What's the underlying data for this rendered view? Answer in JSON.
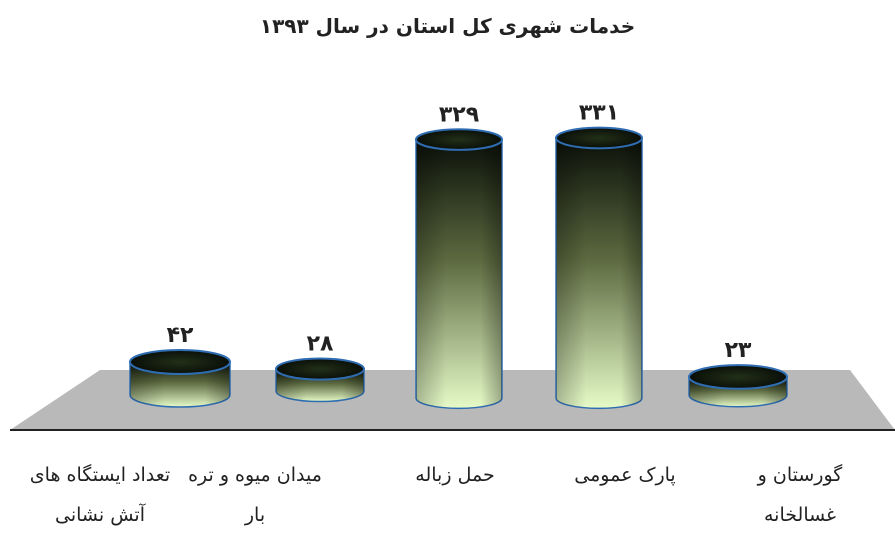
{
  "chart_data": {
    "type": "bar",
    "title": "خدمات شهری کل استان در سال ۱۳۹۳",
    "categories": [
      "تعداد ایستگاه های\nآتش نشانی",
      "میدان میوه و تره\nبار",
      "حمل زباله",
      "پارک عمومی",
      "گورستان و\nغسالخانه"
    ],
    "values": [
      42,
      28,
      329,
      331,
      23
    ],
    "data_labels": [
      "۴۲",
      "۲۸",
      "۳۲۹",
      "۳۳۱",
      "۲۳"
    ],
    "ylim": [
      0,
      331
    ],
    "grid": false,
    "legend": "none",
    "colors": {
      "bar_top": "#0a0f08",
      "bar_bottom": "#e6fbc8",
      "bar_edge": "#2f6db3",
      "floor": "#b9b9b9",
      "axis": "#222222"
    }
  }
}
